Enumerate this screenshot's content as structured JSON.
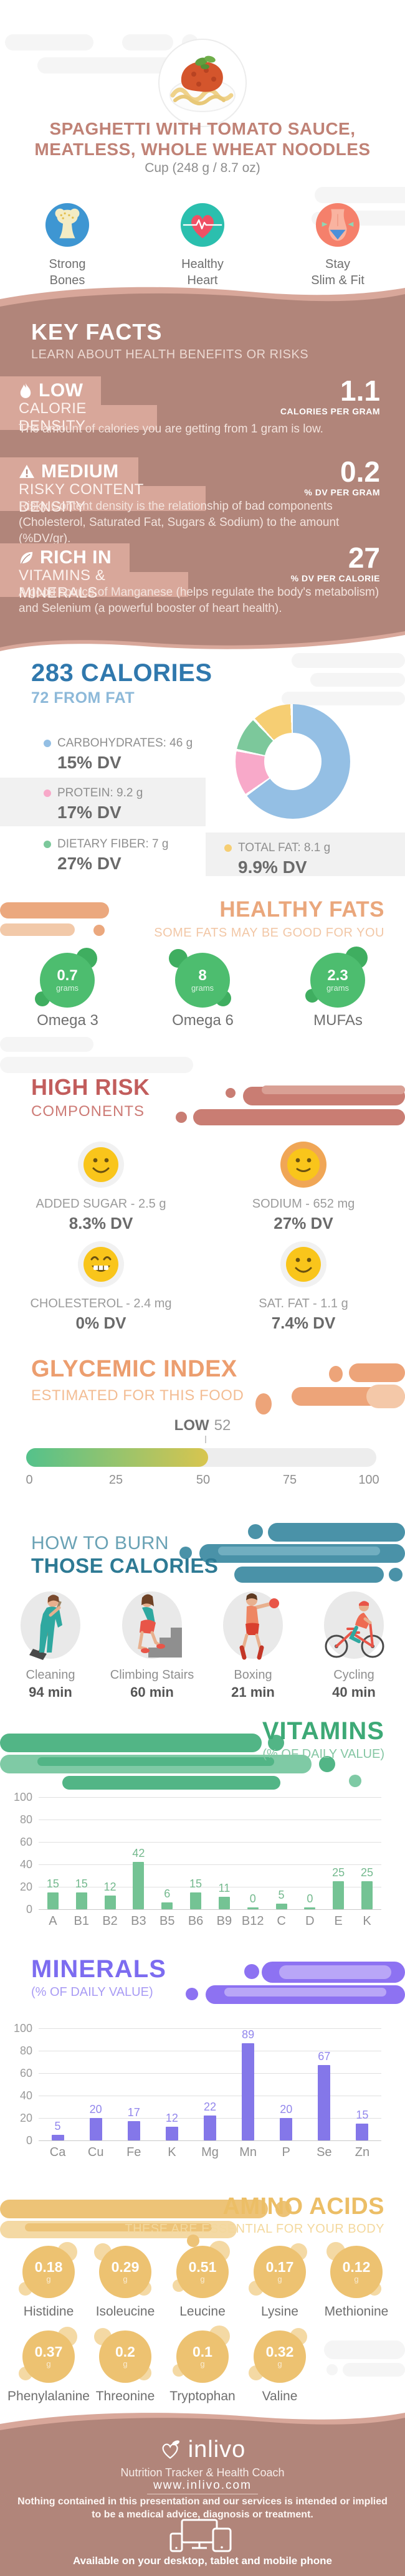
{
  "header": {
    "title_line1": "SPAGHETTI WITH TOMATO SAUCE,",
    "title_line2": "MEATLESS, WHOLE WHEAT NOODLES",
    "serving": "Cup (248 g / 8.7 oz)",
    "benefits": [
      {
        "label_line1": "Strong",
        "label_line2": "Bones"
      },
      {
        "label_line1": "Healthy",
        "label_line2": "Heart"
      },
      {
        "label_line1": "Stay",
        "label_line2": "Slim & Fit"
      }
    ]
  },
  "key_facts": {
    "title": "KEY FACTS",
    "subtitle": "LEARN ABOUT HEALTH BENEFITS OR RISKS",
    "facts": [
      {
        "level": "LOW",
        "category": "CALORIE DENSITY",
        "value": "1.1",
        "unit": "CALORIES PER GRAM",
        "description": "The amount of calories you are getting from 1 gram is low."
      },
      {
        "level": "MEDIUM",
        "category": "RISKY CONTENT DENSITY",
        "value": "0.2",
        "unit": "% DV PER GRAM",
        "description": "Risky Content density is the relationship of bad components (Cholesterol, Saturated Fat, Sugars & Sodium) to the amount (%DV/gr)."
      },
      {
        "level": "RICH IN",
        "category": "VITAMINS & MINERALS",
        "value": "27",
        "unit": "% DV PER CALORIE",
        "description": "A good source of Manganese (helps regulate the body's metabolism) and Selenium (a powerful booster of heart health)."
      }
    ]
  },
  "calories": {
    "title": "283 CALORIES",
    "subtitle": "72 FROM FAT"
  },
  "healthy_fats": {
    "title": "HEALTHY FATS",
    "subtitle": "SOME FATS MAY BE GOOD FOR YOU",
    "items": [
      {
        "value": "0.7",
        "unit": "grams",
        "label": "Omega 3"
      },
      {
        "value": "8",
        "unit": "grams",
        "label": "Omega 6"
      },
      {
        "value": "2.3",
        "unit": "grams",
        "label": "MUFAs"
      }
    ]
  },
  "high_risk": {
    "title": "HIGH RISK",
    "subtitle": "COMPONENTS",
    "items": [
      {
        "name": "ADDED SUGAR - 2.5 g",
        "dv": "8.3% DV"
      },
      {
        "name": "SODIUM - 652 mg",
        "dv": "27% DV"
      },
      {
        "name": "CHOLESTEROL - 2.4 mg",
        "dv": "0% DV"
      },
      {
        "name": "SAT. FAT - 1.1 g",
        "dv": "7.4% DV"
      }
    ]
  },
  "burn": {
    "title_line1": "HOW TO BURN",
    "title_line2": "THOSE CALORIES",
    "activities": [
      {
        "label": "Cleaning",
        "time": "94 min"
      },
      {
        "label": "Climbing Stairs",
        "time": "60 min"
      },
      {
        "label": "Boxing",
        "time": "21 min"
      },
      {
        "label": "Cycling",
        "time": "40 min"
      }
    ]
  },
  "amino_acids": {
    "title": "AMINO ACIDS",
    "subtitle": "THESE ARE ESSENTIAL FOR YOUR BODY",
    "items": [
      {
        "value": "0.18",
        "unit": "g",
        "label": "Histidine"
      },
      {
        "value": "0.29",
        "unit": "g",
        "label": "Isoleucine"
      },
      {
        "value": "0.51",
        "unit": "g",
        "label": "Leucine"
      },
      {
        "value": "0.17",
        "unit": "g",
        "label": "Lysine"
      },
      {
        "value": "0.12",
        "unit": "g",
        "label": "Methionine"
      },
      {
        "value": "0.37",
        "unit": "g",
        "label": "Phenylalanine"
      },
      {
        "value": "0.2",
        "unit": "g",
        "label": "Threonine"
      },
      {
        "value": "0.1",
        "unit": "g",
        "label": "Tryptophan"
      },
      {
        "value": "0.32",
        "unit": "g",
        "label": "Valine"
      }
    ]
  },
  "footer": {
    "brand": "inlivo",
    "tagline": "Nutrition Tracker & Health Coach",
    "url": "www.inlivo.com",
    "disclaimer_line1": "Nothing contained in this presentation and our services is intended or implied",
    "disclaimer_line2": "to be a medical advice, diagnosis or treatment.",
    "availability": "Available on your desktop, tablet and mobile phone"
  },
  "chart_data": [
    {
      "type": "bar",
      "title": "VITAMINS",
      "subtitle": "(% OF DAILY VALUE)",
      "categories": [
        "A",
        "B1",
        "B2",
        "B3",
        "B5",
        "B6",
        "B9",
        "B12",
        "C",
        "D",
        "E",
        "K"
      ],
      "values": [
        15,
        15,
        12,
        42,
        6,
        15,
        11,
        0,
        5,
        0,
        25,
        25
      ],
      "yticks": [
        "100",
        "80",
        "60",
        "40",
        "20",
        "0"
      ],
      "ylim": [
        0,
        100
      ],
      "bar_color": "#74c394",
      "grid": true,
      "ylabel": "% of Daily Value"
    },
    {
      "type": "bar",
      "title": "MINERALS",
      "subtitle": "(% OF DAILY VALUE)",
      "categories": [
        "Ca",
        "Cu",
        "Fe",
        "K",
        "Mg",
        "Mn",
        "P",
        "Se",
        "Zn"
      ],
      "values": [
        5,
        20,
        17,
        12,
        22,
        89,
        20,
        67,
        15
      ],
      "yticks": [
        "100",
        "80",
        "60",
        "40",
        "20",
        "0"
      ],
      "ylim": [
        0,
        100
      ],
      "bar_color": "#8477e9",
      "grid": true,
      "ylabel": "% of Daily Value"
    },
    {
      "type": "donut",
      "title": "283 CALORIES",
      "subtitle": "72 FROM FAT",
      "items": [
        {
          "label": "CARBOHYDRATES: 46 g",
          "grams": 46,
          "dv": "15% DV",
          "color": "#94bfe4"
        },
        {
          "label": "PROTEIN: 9.2 g",
          "grams": 9.2,
          "dv": "17% DV",
          "color": "#f8a9c9"
        },
        {
          "label": "DIETARY FIBER: 7 g",
          "grams": 7,
          "dv": "27% DV",
          "color": "#7cc89b"
        },
        {
          "label": "TOTAL FAT: 8.1 g",
          "grams": 8.1,
          "dv": "9.9% DV",
          "color": "#f6ce73"
        }
      ]
    },
    {
      "type": "gauge",
      "title": "GLYCEMIC INDEX",
      "subtitle": "ESTIMATED FOR THIS FOOD",
      "label": "LOW",
      "value": 52,
      "min": 0,
      "max": 100,
      "ticks": [
        "0",
        "25",
        "50",
        "75",
        "100"
      ]
    }
  ]
}
